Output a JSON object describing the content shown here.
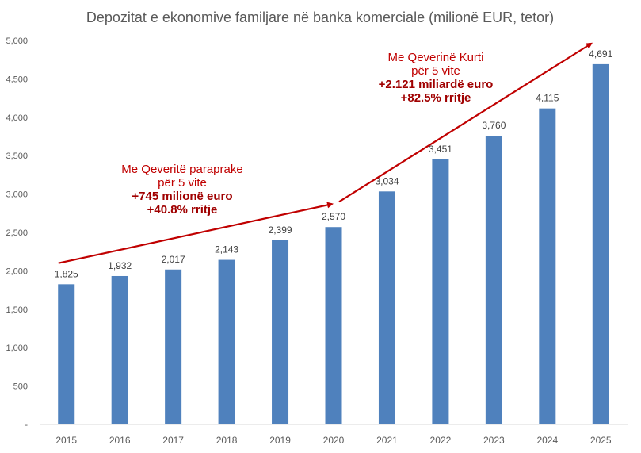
{
  "chart_data": {
    "type": "bar",
    "title": "Depozitat e ekonomive familjare në banka komerciale (milionë EUR, tetor)",
    "xlabel": "",
    "ylabel": "",
    "ylim": [
      0,
      5000
    ],
    "yticks": [
      0,
      500,
      1000,
      1500,
      2000,
      2500,
      3000,
      3500,
      4000,
      4500,
      5000
    ],
    "ytick_labels": [
      "-",
      "500",
      "1,000",
      "1,500",
      "2,000",
      "2,500",
      "3,000",
      "3,500",
      "4,000",
      "4,500",
      "5,000"
    ],
    "grid": false,
    "categories": [
      "2015",
      "2016",
      "2017",
      "2018",
      "2019",
      "2020",
      "2021",
      "2022",
      "2023",
      "2024",
      "2025"
    ],
    "values": [
      1825,
      1932,
      2017,
      2143,
      2399,
      2570,
      3034,
      3451,
      3760,
      4115,
      4691
    ],
    "data_labels": [
      "1,825",
      "1,932",
      "2,017",
      "2,143",
      "2,399",
      "2,570",
      "3,034",
      "3,451",
      "3,760",
      "4,115",
      "4,691"
    ],
    "bar_color": "#4f81bd",
    "annotation_color": "#c00000",
    "annotations": [
      {
        "lines": [
          "Me Qeveritë paraprake",
          "për 5 vite"
        ],
        "bold_lines": [
          "+745 milionë euro",
          "+40.8% rritje"
        ],
        "arrow_from": [
          "2015",
          2100
        ],
        "arrow_to": [
          "2020",
          2870
        ]
      },
      {
        "lines": [
          "Me Qeverinë Kurti",
          "për 5 vite"
        ],
        "bold_lines": [
          "+2.121 miliardë euro",
          "+82.5% rritje"
        ],
        "arrow_from": [
          "2020",
          2900
        ],
        "arrow_to": [
          "2025",
          4960
        ]
      }
    ]
  }
}
